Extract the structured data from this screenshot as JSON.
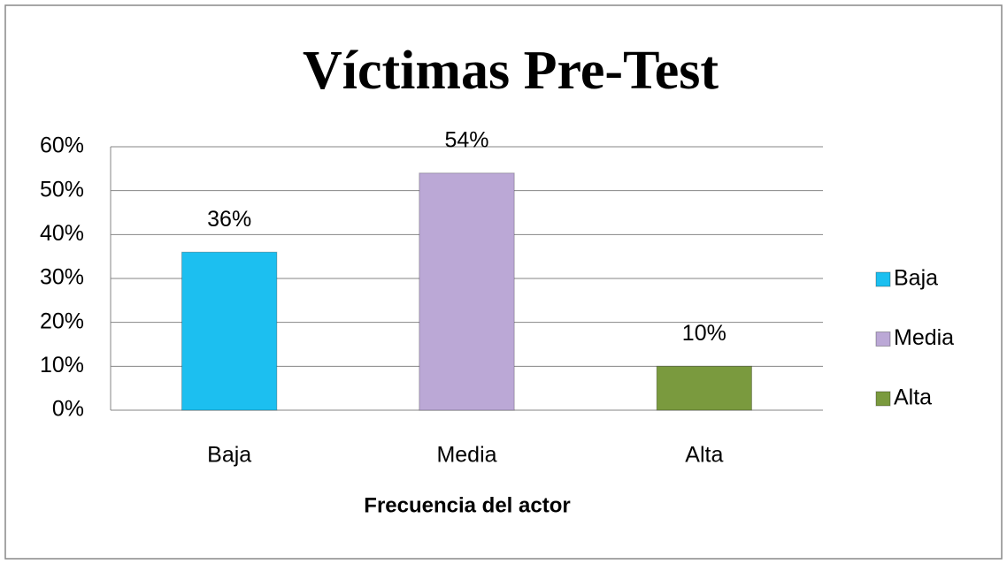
{
  "chart_data": {
    "type": "bar",
    "title": "Víctimas Pre-Test",
    "x_label": "Frecuencia del actor",
    "categories": [
      "Baja",
      "Media",
      "Alta"
    ],
    "values": [
      36,
      54,
      10
    ],
    "value_labels": [
      "36%",
      "54%",
      "10%"
    ],
    "colors": [
      "#1cbff0",
      "#bba8d6",
      "#7a9a3e"
    ],
    "ylim": [
      0,
      60
    ],
    "yticks": [
      {
        "value": 0,
        "label": "0%"
      },
      {
        "value": 10,
        "label": "10%"
      },
      {
        "value": 20,
        "label": "20%"
      },
      {
        "value": 30,
        "label": "30%"
      },
      {
        "value": 40,
        "label": "40%"
      },
      {
        "value": 50,
        "label": "50%"
      },
      {
        "value": 60,
        "label": "60%"
      }
    ],
    "grid": true,
    "legend": "right"
  }
}
